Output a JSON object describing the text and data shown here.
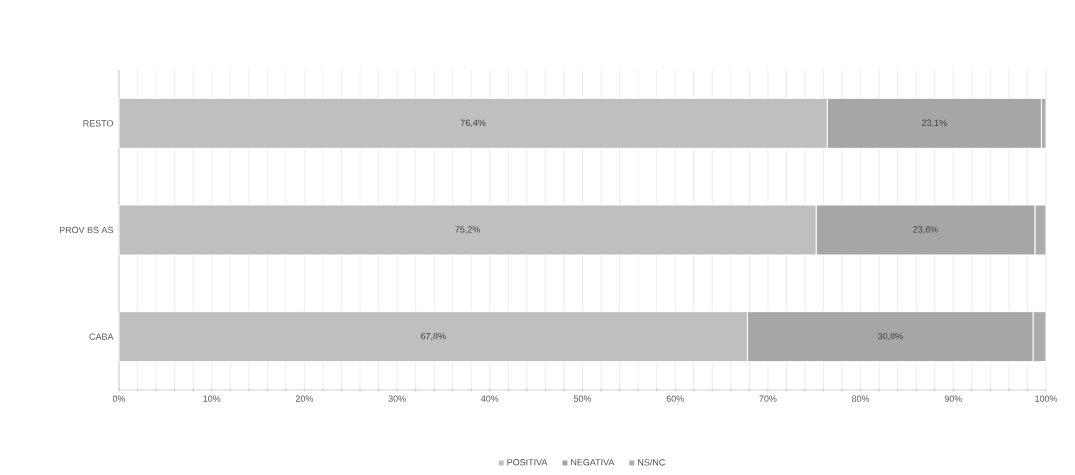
{
  "chart_data": {
    "type": "bar",
    "orientation": "horizontal",
    "stacked": true,
    "categories": [
      "RESTO",
      "PROV BS AS",
      "CABA"
    ],
    "series": [
      {
        "name": "POSITIVA",
        "color": "#bfbfbf",
        "values": [
          76.4,
          75.2,
          67.8
        ],
        "value_labels": [
          "76,4%",
          "75,2%",
          "67,8%"
        ]
      },
      {
        "name": "NEGATIVA",
        "color": "#a6a6a6",
        "values": [
          23.1,
          23.6,
          30.8
        ],
        "value_labels": [
          "23,1%",
          "23,6%",
          "30,8%"
        ]
      },
      {
        "name": "NS/NC",
        "color": "#acacac",
        "values": [
          0.5,
          1.2,
          1.4
        ]
      }
    ],
    "xlim": [
      0,
      100
    ],
    "xticks": [
      {
        "value": 0,
        "label": "0%"
      },
      {
        "value": 2,
        "label": null
      },
      {
        "value": 4,
        "label": null
      },
      {
        "value": 6,
        "label": null
      },
      {
        "value": 8,
        "label": null
      },
      {
        "value": 10,
        "label": "10%"
      },
      {
        "value": 12,
        "label": null
      },
      {
        "value": 14,
        "label": null
      },
      {
        "value": 16,
        "label": null
      },
      {
        "value": 18,
        "label": null
      },
      {
        "value": 20,
        "label": "20%"
      },
      {
        "value": 22,
        "label": null
      },
      {
        "value": 24,
        "label": null
      },
      {
        "value": 26,
        "label": null
      },
      {
        "value": 28,
        "label": null
      },
      {
        "value": 30,
        "label": "30%"
      },
      {
        "value": 32,
        "label": null
      },
      {
        "value": 34,
        "label": null
      },
      {
        "value": 36,
        "label": null
      },
      {
        "value": 38,
        "label": null
      },
      {
        "value": 40,
        "label": "40%"
      },
      {
        "value": 42,
        "label": null
      },
      {
        "value": 44,
        "label": null
      },
      {
        "value": 46,
        "label": null
      },
      {
        "value": 48,
        "label": null
      },
      {
        "value": 50,
        "label": "50%"
      },
      {
        "value": 52,
        "label": null
      },
      {
        "value": 54,
        "label": null
      },
      {
        "value": 56,
        "label": null
      },
      {
        "value": 58,
        "label": null
      },
      {
        "value": 60,
        "label": "60%"
      },
      {
        "value": 62,
        "label": null
      },
      {
        "value": 64,
        "label": null
      },
      {
        "value": 66,
        "label": null
      },
      {
        "value": 68,
        "label": null
      },
      {
        "value": 70,
        "label": "70%"
      },
      {
        "value": 72,
        "label": null
      },
      {
        "value": 74,
        "label": null
      },
      {
        "value": 76,
        "label": null
      },
      {
        "value": 78,
        "label": null
      },
      {
        "value": 80,
        "label": "80%"
      },
      {
        "value": 82,
        "label": null
      },
      {
        "value": 84,
        "label": null
      },
      {
        "value": 86,
        "label": null
      },
      {
        "value": 88,
        "label": null
      },
      {
        "value": 90,
        "label": "90%"
      },
      {
        "value": 92,
        "label": null
      },
      {
        "value": 94,
        "label": null
      },
      {
        "value": 96,
        "label": null
      },
      {
        "value": 98,
        "label": null
      },
      {
        "value": 100,
        "label": "100%"
      }
    ],
    "grid": "x",
    "legend": "bottom"
  }
}
